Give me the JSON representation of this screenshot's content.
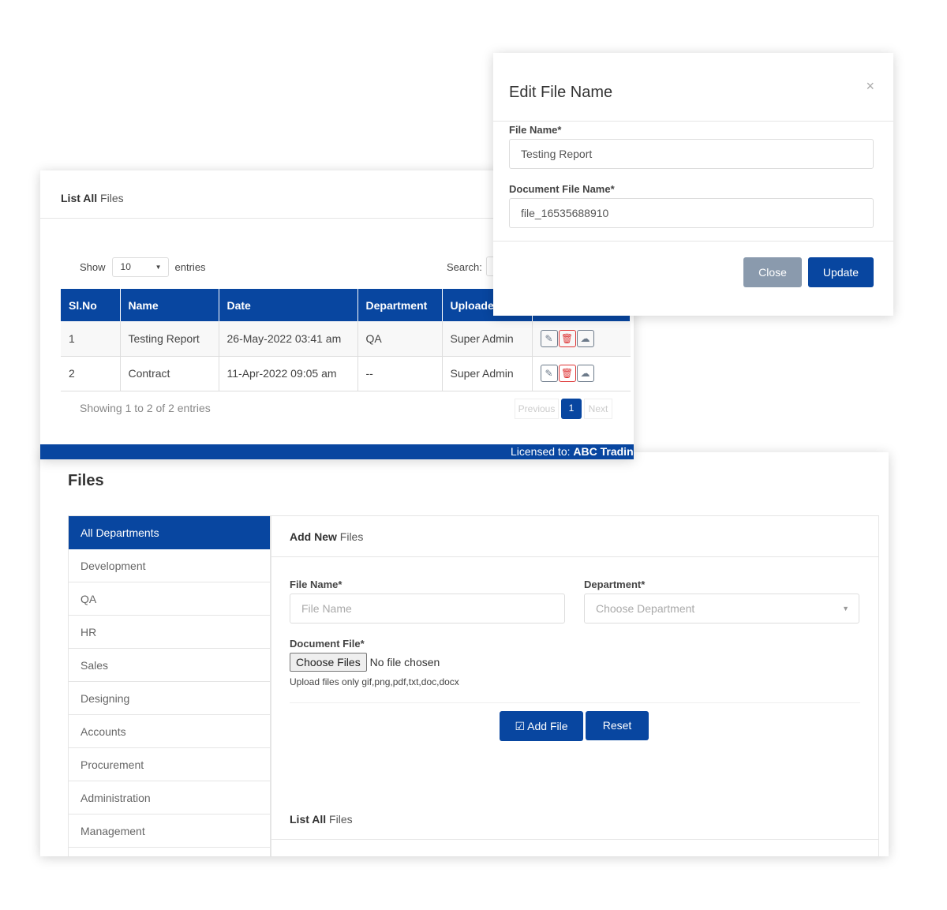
{
  "files_page": {
    "title": "Files",
    "departments": [
      {
        "label": "All Departments",
        "active": true
      },
      {
        "label": "Development"
      },
      {
        "label": "QA"
      },
      {
        "label": "HR"
      },
      {
        "label": "Sales"
      },
      {
        "label": "Designing"
      },
      {
        "label": "Accounts"
      },
      {
        "label": "Procurement"
      },
      {
        "label": "Administration"
      },
      {
        "label": "Management"
      }
    ],
    "add_new": {
      "title_bold": "Add New",
      "title_rest": " Files",
      "file_name_label": "File Name*",
      "file_name_placeholder": "File Name",
      "department_label": "Department*",
      "department_placeholder": "Choose Department",
      "document_label": "Document File*",
      "choose_button": "Choose Files",
      "no_file": "No file chosen",
      "hint": "Upload files only gif,png,pdf,txt,doc,docx",
      "add_button": "Add File",
      "reset_button": "Reset"
    },
    "list_title_bold": "List All",
    "list_title_rest": " Files"
  },
  "list_card": {
    "title_bold": "List All",
    "title_rest": " Files",
    "show_label": "Show",
    "entries_value": "10",
    "entries_label": "entries",
    "search_label": "Search:",
    "columns": [
      "Sl.No",
      "Name",
      "Date",
      "Department",
      "Uploaded By",
      ""
    ],
    "rows": [
      {
        "no": "1",
        "name": "Testing Report",
        "date": "26-May-2022 03:41 am",
        "department": "QA",
        "uploaded_by": "Super Admin"
      },
      {
        "no": "2",
        "name": "Contract",
        "date": "11-Apr-2022 09:05 am",
        "department": "--",
        "uploaded_by": "Super Admin"
      }
    ],
    "showing": "Showing 1 to 2 of 2 entries",
    "pagination": {
      "previous": "Previous",
      "current": "1",
      "next": "Next"
    },
    "footer_license": "Licensed to: ",
    "footer_company": "ABC Trading"
  },
  "modal": {
    "title": "Edit File Name",
    "close_icon": "×",
    "file_name_label": "File Name*",
    "file_name_value": "Testing Report",
    "doc_label": "Document File Name*",
    "doc_value": "file_16535688910",
    "close_button": "Close",
    "update_button": "Update"
  },
  "colors": {
    "primary": "#0846a0",
    "close_button": "#8a9aad"
  }
}
